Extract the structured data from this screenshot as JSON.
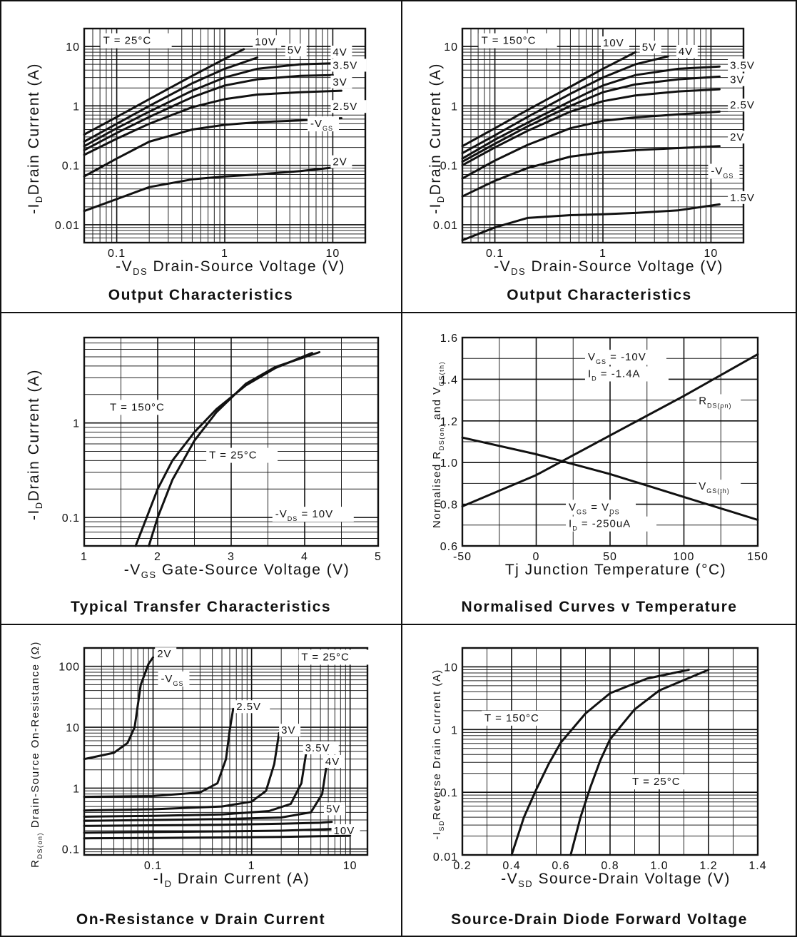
{
  "chart_data": [
    {
      "type": "line",
      "title": "Output Characteristics",
      "xlabel_pre": "-V",
      "xlabel_sub": "DS",
      "xlabel_post": "Drain-Source Voltage (V)",
      "ylabel_pre": "-I",
      "ylabel_sub": "D",
      "ylabel_post": "Drain Current (A)",
      "xscale": "log",
      "yscale": "log",
      "xlim": [
        0.05,
        20
      ],
      "ylim": [
        0.005,
        20
      ],
      "xticks": [
        0.1,
        1,
        10
      ],
      "xtick_labels": [
        "0.1",
        "1",
        "10"
      ],
      "yticks": [
        0.01,
        0.1,
        1,
        10
      ],
      "ytick_labels": [
        "0.01",
        "0.1",
        "1",
        "10"
      ],
      "grid": true,
      "annotations": [
        {
          "text": "T =  25°C",
          "x": 0.075,
          "y": 11
        },
        {
          "text": "-V",
          "sub": "GS",
          "x": 6.2,
          "y": 0.44
        }
      ],
      "series": [
        {
          "name": "10V",
          "label_at": [
            1.9,
            10.5
          ],
          "x": [
            0.05,
            0.1,
            0.2,
            0.5,
            1,
            1.5
          ],
          "y": [
            0.33,
            0.65,
            1.3,
            3.2,
            6.2,
            9
          ]
        },
        {
          "name": "5V",
          "label_at": [
            3.8,
            7.6
          ],
          "x": [
            0.05,
            0.1,
            0.2,
            0.5,
            1,
            2
          ],
          "y": [
            0.25,
            0.5,
            1.0,
            2.4,
            4.2,
            6.5
          ]
        },
        {
          "name": "4V",
          "label_at": [
            10,
            7.0
          ],
          "x": [
            0.05,
            0.1,
            0.2,
            0.5,
            1,
            2,
            5,
            10
          ],
          "y": [
            0.21,
            0.42,
            0.8,
            1.8,
            3.0,
            4.2,
            5.0,
            5.2
          ]
        },
        {
          "name": "3.5V",
          "label_at": [
            10,
            4.2
          ],
          "x": [
            0.05,
            0.1,
            0.2,
            0.5,
            1,
            2,
            5,
            10
          ],
          "y": [
            0.18,
            0.35,
            0.65,
            1.4,
            2.2,
            2.8,
            3.2,
            3.3
          ]
        },
        {
          "name": "3V",
          "label_at": [
            10,
            2.2
          ],
          "x": [
            0.05,
            0.1,
            0.2,
            0.5,
            1,
            2,
            5,
            12
          ],
          "y": [
            0.15,
            0.28,
            0.5,
            0.95,
            1.3,
            1.55,
            1.7,
            1.8
          ]
        },
        {
          "name": "2.5V",
          "label_at": [
            10,
            0.85
          ],
          "x": [
            0.05,
            0.1,
            0.2,
            0.5,
            1,
            2,
            5,
            12
          ],
          "y": [
            0.065,
            0.13,
            0.25,
            0.4,
            0.48,
            0.53,
            0.57,
            0.62
          ]
        },
        {
          "name": "2V",
          "label_at": [
            10,
            0.1
          ],
          "x": [
            0.05,
            0.1,
            0.2,
            0.5,
            1,
            2,
            5,
            12
          ],
          "y": [
            0.017,
            0.027,
            0.043,
            0.058,
            0.065,
            0.07,
            0.08,
            0.095
          ]
        }
      ]
    },
    {
      "type": "line",
      "title": "Output Characteristics",
      "xlabel_pre": "-V",
      "xlabel_sub": "DS",
      "xlabel_post": "Drain-Source Voltage (V)",
      "ylabel_pre": "-I",
      "ylabel_sub": "D",
      "ylabel_post": "Drain Current (A)",
      "xscale": "log",
      "yscale": "log",
      "xlim": [
        0.05,
        20
      ],
      "ylim": [
        0.005,
        20
      ],
      "xticks": [
        0.1,
        1,
        10
      ],
      "xtick_labels": [
        "0.1",
        "1",
        "10"
      ],
      "yticks": [
        0.01,
        0.1,
        1,
        10
      ],
      "ytick_labels": [
        "0.01",
        "0.1",
        "1",
        "10"
      ],
      "grid": true,
      "annotations": [
        {
          "text": "T =  150°C",
          "x": 0.075,
          "y": 11
        },
        {
          "text": "-V",
          "sub": "GS",
          "x": 10,
          "y": 0.07
        }
      ],
      "series": [
        {
          "name": "10V",
          "label_at": [
            1.0,
            10.0
          ],
          "x": [
            0.05,
            0.1,
            0.2,
            0.5,
            1,
            2
          ],
          "y": [
            0.21,
            0.42,
            0.85,
            2.1,
            4.2,
            8
          ]
        },
        {
          "name": "5V",
          "label_at": [
            2.3,
            8.5
          ],
          "x": [
            0.05,
            0.1,
            0.2,
            0.5,
            1,
            2,
            4
          ],
          "y": [
            0.16,
            0.32,
            0.65,
            1.6,
            3.0,
            5.0,
            6.8
          ]
        },
        {
          "name": "4V",
          "label_at": [
            5.0,
            7.2
          ],
          "x": [
            0.05,
            0.1,
            0.2,
            0.5,
            1,
            2,
            5,
            12
          ],
          "y": [
            0.13,
            0.27,
            0.52,
            1.2,
            2.2,
            3.3,
            4.2,
            4.6
          ]
        },
        {
          "name": "3.5V",
          "label_at": [
            15,
            4.2
          ],
          "x": [
            0.05,
            0.1,
            0.2,
            0.5,
            1,
            2,
            5,
            12
          ],
          "y": [
            0.115,
            0.23,
            0.45,
            1.0,
            1.7,
            2.3,
            2.8,
            3.1
          ]
        },
        {
          "name": "3V",
          "label_at": [
            15,
            2.4
          ],
          "x": [
            0.05,
            0.1,
            0.2,
            0.5,
            1,
            2,
            5,
            12
          ],
          "y": [
            0.1,
            0.2,
            0.38,
            0.8,
            1.2,
            1.5,
            1.75,
            1.9
          ]
        },
        {
          "name": "2.5V",
          "label_at": [
            15,
            0.9
          ],
          "x": [
            0.05,
            0.1,
            0.2,
            0.5,
            1,
            2,
            5,
            12
          ],
          "y": [
            0.06,
            0.12,
            0.22,
            0.42,
            0.56,
            0.64,
            0.72,
            0.8
          ]
        },
        {
          "name": "2V",
          "label_at": [
            15,
            0.26
          ],
          "x": [
            0.05,
            0.1,
            0.2,
            0.5,
            1,
            2,
            5,
            12
          ],
          "y": [
            0.03,
            0.055,
            0.09,
            0.14,
            0.165,
            0.18,
            0.195,
            0.21
          ]
        },
        {
          "name": "1.5V",
          "label_at": [
            15,
            0.025
          ],
          "x": [
            0.05,
            0.1,
            0.2,
            0.5,
            1,
            2,
            5,
            12
          ],
          "y": [
            0.0055,
            0.009,
            0.013,
            0.0145,
            0.015,
            0.0158,
            0.0175,
            0.022
          ]
        }
      ]
    },
    {
      "type": "line",
      "title": "Typical Transfer Characteristics",
      "xlabel_pre": "-V",
      "xlabel_sub": "GS",
      "xlabel_post": "Gate-Source Voltage (V)",
      "ylabel_pre": "-I",
      "ylabel_sub": "D",
      "ylabel_post": "Drain Current (A)",
      "xscale": "linear",
      "yscale": "log",
      "xlim": [
        1,
        5
      ],
      "ylim": [
        0.05,
        8
      ],
      "xticks": [
        1,
        2,
        3,
        4,
        5
      ],
      "xtick_labels": [
        "1",
        "2",
        "3",
        "4",
        "5"
      ],
      "yticks": [
        0.1,
        1
      ],
      "ytick_labels": [
        "0.1",
        "1"
      ],
      "grid": true,
      "annotations": [
        {
          "text": "T =  150°C",
          "x": 1.35,
          "y": 1.35
        },
        {
          "text": "T =  25°C",
          "x": 2.7,
          "y": 0.42
        },
        {
          "text": "-V",
          "sub": "DS",
          "tail": " =  10V",
          "x": 3.6,
          "y": 0.1
        }
      ],
      "series": [
        {
          "name": "",
          "x": [
            1.7,
            1.85,
            2.0,
            2.2,
            2.5,
            2.8,
            3.2,
            3.6,
            4.1
          ],
          "y": [
            0.05,
            0.1,
            0.2,
            0.4,
            0.8,
            1.4,
            2.5,
            3.8,
            5.5
          ]
        },
        {
          "name": "",
          "x": [
            1.88,
            2.0,
            2.2,
            2.5,
            2.8,
            3.2,
            3.6,
            4.2
          ],
          "y": [
            0.05,
            0.1,
            0.25,
            0.65,
            1.3,
            2.6,
            3.9,
            5.6
          ]
        }
      ]
    },
    {
      "type": "line",
      "title": "Normalised Curves v Temperature",
      "xlabel_pre": "Tj  Junction Temperature (°C)",
      "xlabel_sub": "",
      "xlabel_post": "",
      "ylabel_pre": "Normalised R",
      "ylabel_sub": "DS(on)",
      "ylabel_post": " and V",
      "ylabel_sub2": "GS(th)",
      "xscale": "linear",
      "yscale": "linear",
      "xlim": [
        -50,
        150
      ],
      "ylim": [
        0.6,
        1.6
      ],
      "xticks": [
        -50,
        0,
        50,
        100,
        150
      ],
      "xtick_labels": [
        "-50",
        "0",
        "50",
        "100",
        "150"
      ],
      "yticks": [
        0.6,
        0.8,
        1.0,
        1.2,
        1.4,
        1.6
      ],
      "ytick_labels": [
        "0.6",
        "0.8",
        "1.0",
        "1.2",
        "1.4",
        "1.6"
      ],
      "grid": true,
      "annotations": [
        {
          "text": "V",
          "sub": "GS",
          "tail": " =  -10V",
          "x": 35,
          "y": 1.49
        },
        {
          "text": "I",
          "sub": "D",
          "tail": " =  -1.4A",
          "x": 35,
          "y": 1.41
        },
        {
          "text": "V",
          "sub": "GS",
          "tail": " =  V",
          "sub2": "DS",
          "x": 22,
          "y": 0.77
        },
        {
          "text": "I",
          "sub": "D",
          "tail": " =  -250uA",
          "x": 22,
          "y": 0.69
        }
      ],
      "series": [
        {
          "name": "R",
          "name_sub": "DS(on)",
          "label_at": [
            110,
            1.28
          ],
          "x": [
            -50,
            0,
            50,
            100,
            150
          ],
          "y": [
            0.79,
            0.94,
            1.13,
            1.32,
            1.52
          ]
        },
        {
          "name": "V",
          "name_sub": "GS(th)",
          "label_at": [
            110,
            0.87
          ],
          "x": [
            -50,
            0,
            50,
            100,
            150
          ],
          "y": [
            1.12,
            1.04,
            0.945,
            0.835,
            0.725
          ]
        }
      ]
    },
    {
      "type": "line",
      "title": "On-Resistance v Drain Current",
      "xlabel_pre": "-I",
      "xlabel_sub": "D",
      "xlabel_post": "Drain Current (A)",
      "ylabel_pre": "R",
      "ylabel_sub": "DS(on)",
      "ylabel_post": " Drain-Source On-Resistance (Ω)",
      "xscale": "log",
      "yscale": "log",
      "xlim": [
        0.02,
        15
      ],
      "ylim": [
        0.08,
        200
      ],
      "xticks": [
        0.1,
        1,
        10
      ],
      "xtick_labels": [
        "0.1",
        "1",
        "10"
      ],
      "yticks": [
        0.1,
        1,
        10,
        100
      ],
      "ytick_labels": [
        "0.1",
        "1",
        "10",
        "100"
      ],
      "grid": true,
      "annotations": [
        {
          "text": "T =  25°C",
          "x": 3.2,
          "y": 125
        },
        {
          "text": "-V",
          "sub": "GS",
          "x": 0.12,
          "y": 55
        }
      ],
      "series": [
        {
          "name": "2V",
          "label_at": [
            0.11,
            140
          ],
          "x": [
            0.02,
            0.04,
            0.055,
            0.065,
            0.075,
            0.09,
            0.1
          ],
          "y": [
            3.0,
            3.8,
            5.5,
            10,
            50,
            110,
            140
          ]
        },
        {
          "name": "2.5V",
          "label_at": [
            0.7,
            19
          ],
          "x": [
            0.02,
            0.1,
            0.3,
            0.45,
            0.55,
            0.6,
            0.65
          ],
          "y": [
            0.72,
            0.74,
            0.85,
            1.2,
            3.0,
            9,
            20
          ]
        },
        {
          "name": "3V",
          "label_at": [
            2.0,
            7.8
          ],
          "x": [
            0.02,
            0.1,
            0.5,
            1.0,
            1.4,
            1.7,
            1.9
          ],
          "y": [
            0.43,
            0.45,
            0.5,
            0.6,
            0.9,
            2.5,
            8
          ]
        },
        {
          "name": "3.5V",
          "label_at": [
            3.5,
            4.0
          ],
          "x": [
            0.02,
            0.1,
            0.5,
            1.5,
            2.5,
            3.2,
            3.6
          ],
          "y": [
            0.34,
            0.35,
            0.37,
            0.42,
            0.55,
            1.2,
            4
          ]
        },
        {
          "name": "4V",
          "label_at": [
            5.6,
            2.4
          ],
          "x": [
            0.02,
            0.1,
            0.5,
            2,
            4,
            5.2,
            5.8
          ],
          "y": [
            0.29,
            0.3,
            0.31,
            0.33,
            0.4,
            0.8,
            2.5
          ]
        },
        {
          "name": "5V",
          "label_at": [
            5.7,
            0.4
          ],
          "x": [
            0.02,
            0.1,
            0.5,
            2,
            5,
            6.5
          ],
          "y": [
            0.24,
            0.245,
            0.25,
            0.26,
            0.27,
            0.28
          ]
        },
        {
          "name": "10V",
          "label_at": [
            6.8,
            0.175
          ],
          "x": [
            0.02,
            0.1,
            0.5,
            2,
            5,
            10
          ],
          "y": [
            0.185,
            0.19,
            0.195,
            0.2,
            0.21,
            0.22
          ]
        },
        {
          "name": "",
          "x": [
            0.02,
            0.1,
            0.5,
            2,
            5,
            10
          ],
          "y": [
            0.15,
            0.152,
            0.155,
            0.158,
            0.162,
            0.165
          ]
        }
      ]
    },
    {
      "type": "line",
      "title": "Source-Drain Diode Forward Voltage",
      "xlabel_pre": "-V",
      "xlabel_sub": "SD",
      "xlabel_post": "Source-Drain Voltage (V)",
      "ylabel_pre": "-I",
      "ylabel_sub": "SD",
      "ylabel_post": "Reverse Drain Current (A)",
      "xscale": "linear",
      "yscale": "log",
      "xlim": [
        0.2,
        1.4
      ],
      "ylim": [
        0.01,
        20
      ],
      "xticks": [
        0.2,
        0.4,
        0.6,
        0.8,
        1.0,
        1.2,
        1.4
      ],
      "xtick_labels": [
        "0.2",
        "0.4",
        "0.6",
        "0.8",
        "1.0",
        "1.2",
        "1.4"
      ],
      "yticks": [
        0.1,
        1,
        10
      ],
      "ytick_labels": [
        "0.1",
        "1",
        "10"
      ],
      "ytick0_label": "0.01",
      "grid": true,
      "annotations": [
        {
          "text": "T =  150°C",
          "x": 0.29,
          "y": 1.35
        },
        {
          "text": "T =  25°C",
          "x": 0.89,
          "y": 0.13
        }
      ],
      "series": [
        {
          "name": "",
          "x": [
            0.4,
            0.45,
            0.5,
            0.55,
            0.6,
            0.7,
            0.8,
            0.95,
            1.12
          ],
          "y": [
            0.01,
            0.04,
            0.11,
            0.28,
            0.62,
            1.8,
            3.8,
            6.5,
            9
          ]
        },
        {
          "name": "",
          "x": [
            0.64,
            0.68,
            0.72,
            0.76,
            0.8,
            0.9,
            1.0,
            1.2
          ],
          "y": [
            0.01,
            0.04,
            0.12,
            0.32,
            0.7,
            2.1,
            4.2,
            9
          ]
        }
      ]
    }
  ]
}
